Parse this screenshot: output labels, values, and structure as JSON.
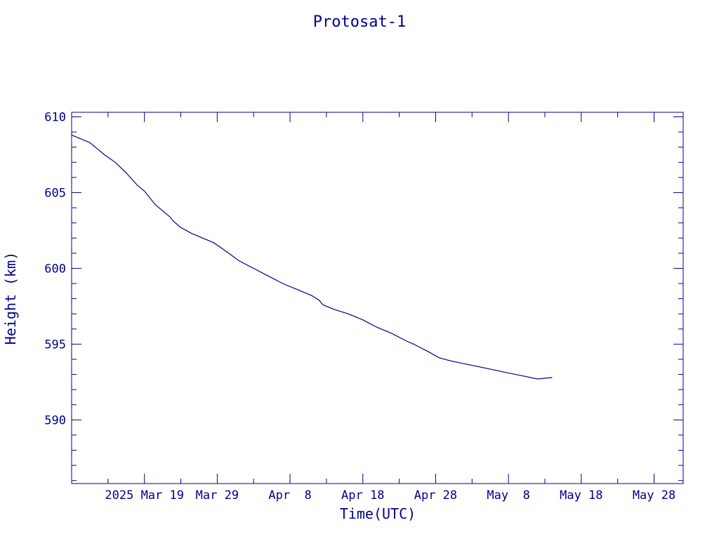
{
  "chart_data": {
    "type": "line",
    "title": "Protosat-1",
    "xlabel": "Time(UTC)",
    "ylabel": "Height (km)",
    "xlim": [
      "2025-03-09T00:00",
      "2025-06-01T00:00"
    ],
    "ylim": [
      585.8,
      610.3
    ],
    "grid": false,
    "colors": {
      "axis": "#00008b",
      "line": "#00008b"
    },
    "x_ticks": [
      {
        "date": "2025-03-19",
        "label": "2025 Mar 19"
      },
      {
        "date": "2025-03-29",
        "label": "Mar 29"
      },
      {
        "date": "2025-04-08",
        "label": "Apr  8"
      },
      {
        "date": "2025-04-18",
        "label": "Apr 18"
      },
      {
        "date": "2025-04-28",
        "label": "Apr 28"
      },
      {
        "date": "2025-05-08",
        "label": "May  8"
      },
      {
        "date": "2025-05-18",
        "label": "May 18"
      },
      {
        "date": "2025-05-28",
        "label": "May 28"
      }
    ],
    "y_ticks": [
      590,
      595,
      600,
      605,
      610
    ],
    "series": [
      {
        "x": [
          "2025-03-09T00:00",
          "2025-03-10T00:00",
          "2025-03-11T12:00",
          "2025-03-12T12:00",
          "2025-03-13T12:00",
          "2025-03-15T00:00",
          "2025-03-16T12:00",
          "2025-03-18T00:00",
          "2025-03-19T00:00",
          "2025-03-20T12:00",
          "2025-03-21T12:00",
          "2025-03-22T12:00",
          "2025-03-23T00:00",
          "2025-03-24T00:00",
          "2025-03-25T12:00",
          "2025-03-27T00:00",
          "2025-03-28T12:00",
          "2025-03-30T00:00",
          "2025-04-01T00:00",
          "2025-04-03T00:00",
          "2025-04-05T00:00",
          "2025-04-07T00:00",
          "2025-04-09T00:00",
          "2025-04-11T00:00",
          "2025-04-12T00:00",
          "2025-04-12T12:00",
          "2025-04-14T00:00",
          "2025-04-16T00:00",
          "2025-04-18T00:00",
          "2025-04-20T00:00",
          "2025-04-22T00:00",
          "2025-04-24T00:00",
          "2025-04-25T00:00",
          "2025-04-27T00:00",
          "2025-04-28T12:00",
          "2025-04-30T00:00",
          "2025-05-02T00:00",
          "2025-05-04T00:00",
          "2025-05-06T00:00",
          "2025-05-08T00:00",
          "2025-05-10T00:00",
          "2025-05-12T00:00",
          "2025-05-14T00:00"
        ],
        "y": [
          608.8,
          608.6,
          608.3,
          607.9,
          607.5,
          607.0,
          606.3,
          605.5,
          605.1,
          604.2,
          603.8,
          603.4,
          603.1,
          602.7,
          602.3,
          602.0,
          601.7,
          601.2,
          600.5,
          600.0,
          599.5,
          599.0,
          598.6,
          598.2,
          597.9,
          597.6,
          597.3,
          597.0,
          596.6,
          596.1,
          595.7,
          595.2,
          595.0,
          594.5,
          594.1,
          593.9,
          593.7,
          593.5,
          593.3,
          593.1,
          592.9,
          592.7,
          592.8
        ]
      }
    ]
  }
}
